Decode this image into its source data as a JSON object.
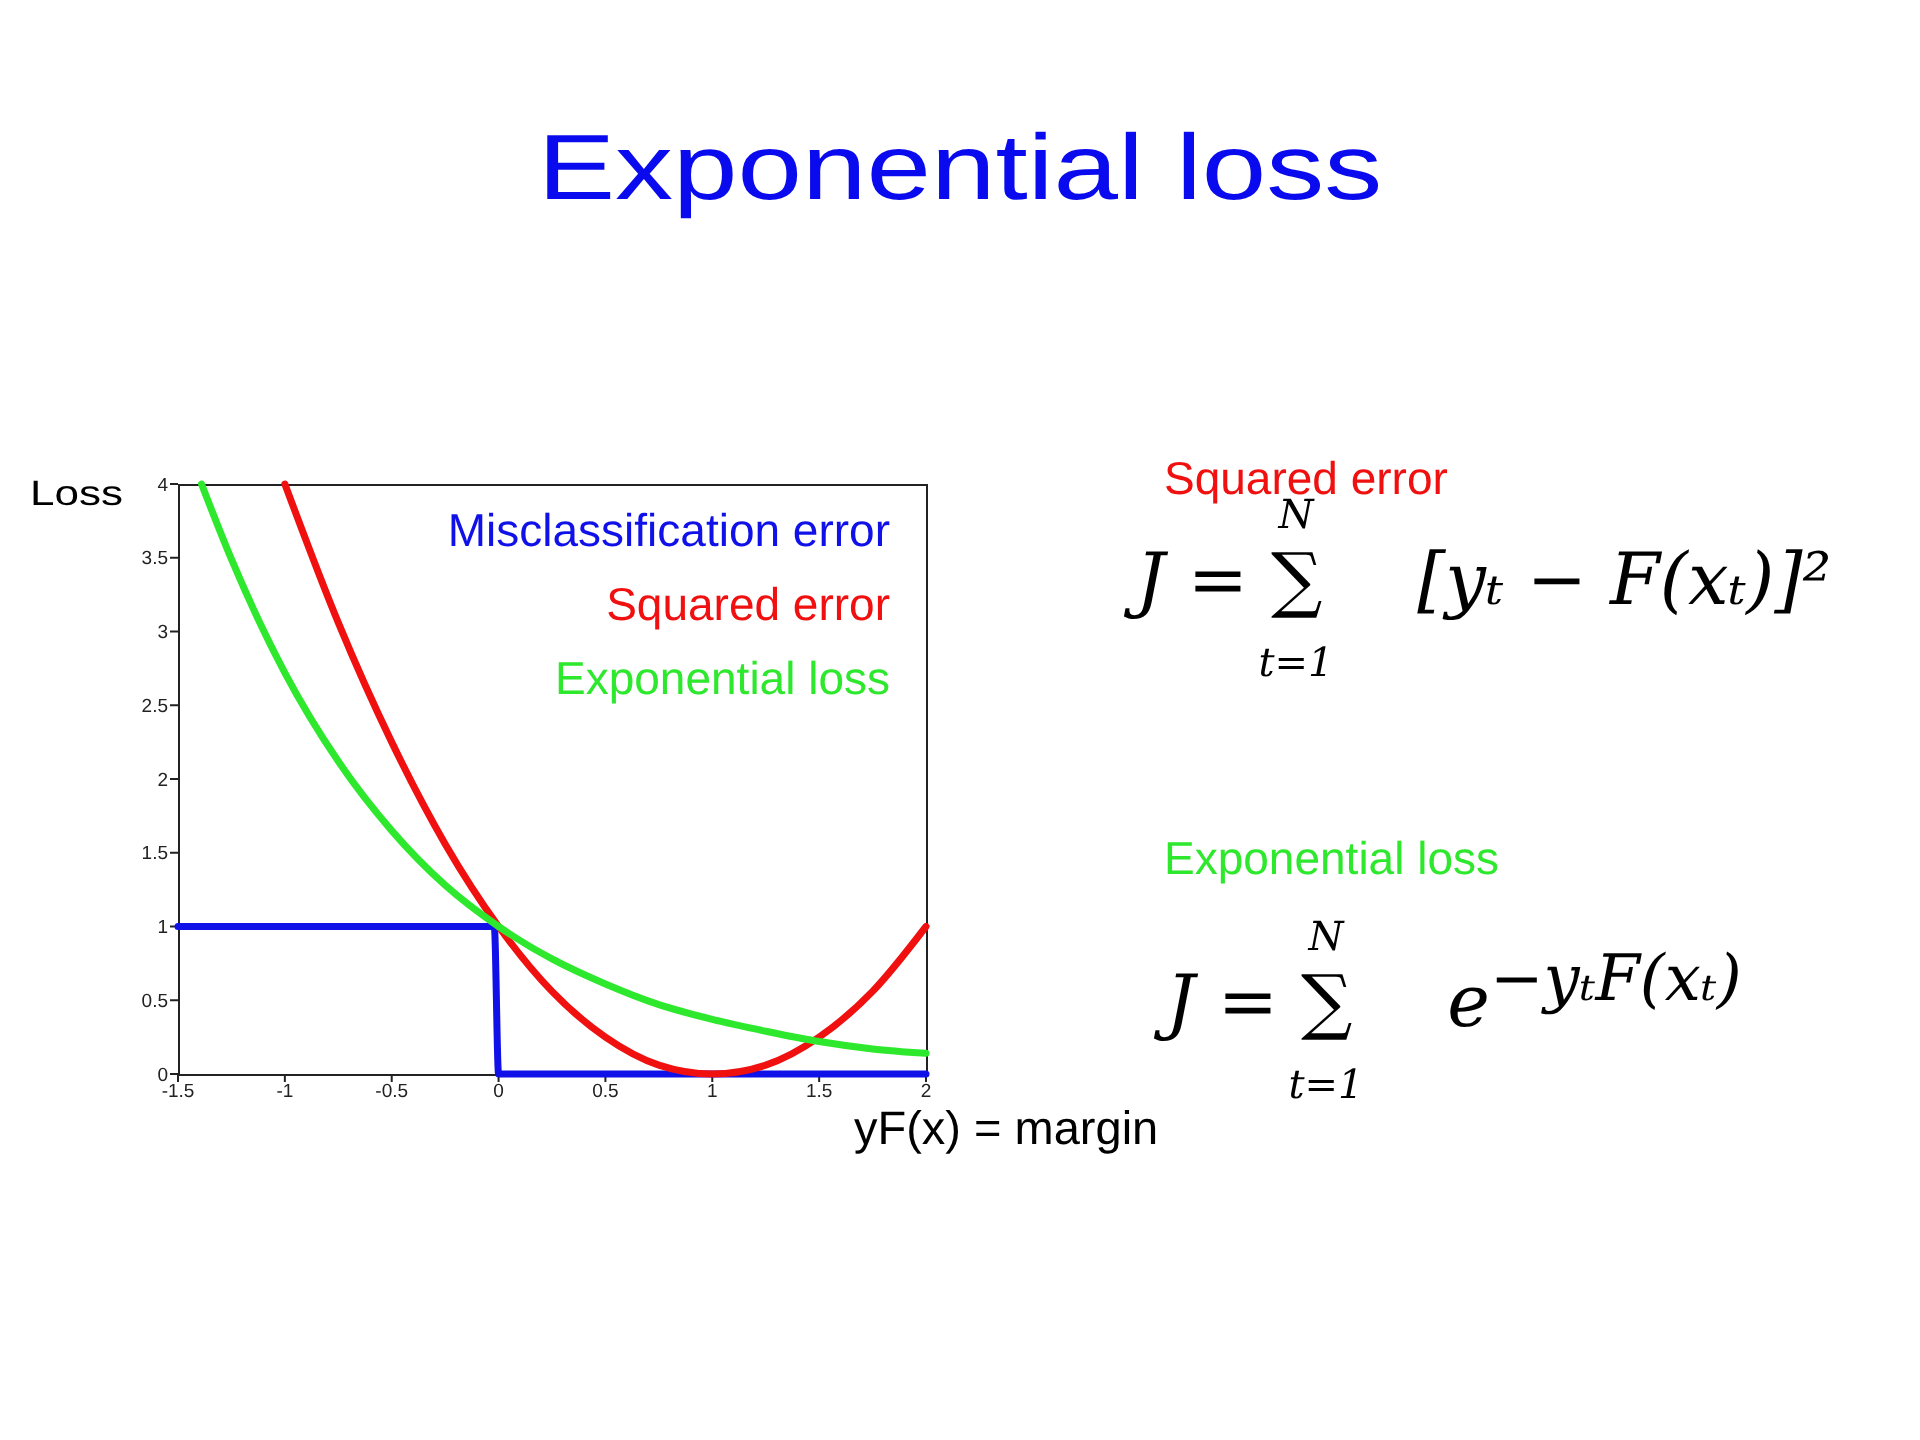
{
  "chart_data": {
    "type": "line",
    "title": "Exponential loss",
    "xlabel": "yF(x) = margin",
    "ylabel": "Loss",
    "series": [
      {
        "name": "Misclassification error",
        "color": "#1010e8",
        "x": [
          -1.5,
          -0.02,
          0,
          2
        ],
        "values": [
          1,
          1,
          0,
          0
        ]
      },
      {
        "name": "Squared error",
        "color": "#f01010",
        "x": [
          -1,
          -0.75,
          -0.5,
          -0.25,
          0,
          0.25,
          0.5,
          0.75,
          1,
          1.25,
          1.5,
          1.75,
          2
        ],
        "values": [
          4,
          3.06,
          2.25,
          1.56,
          1,
          0.56,
          0.25,
          0.06,
          0,
          0.06,
          0.25,
          0.56,
          1
        ]
      },
      {
        "name": "Exponential loss",
        "color": "#2ee82e",
        "x": [
          -1.39,
          -1.25,
          -1,
          -0.75,
          -0.5,
          -0.25,
          0,
          0.25,
          0.5,
          0.75,
          1,
          1.25,
          1.5,
          1.75,
          2
        ],
        "values": [
          4,
          3.49,
          2.72,
          2.12,
          1.65,
          1.28,
          1,
          0.78,
          0.61,
          0.47,
          0.37,
          0.29,
          0.22,
          0.17,
          0.14
        ]
      }
    ],
    "xlim": [
      -1.5,
      2
    ],
    "xticks": [
      -1.5,
      -1,
      -0.5,
      0,
      0.5,
      1,
      1.5,
      2
    ],
    "ylim": [
      0,
      4
    ],
    "yticks": [
      0,
      0.5,
      1,
      1.5,
      2,
      2.5,
      3,
      3.5,
      4
    ],
    "legend": "top right",
    "marker": "none",
    "line_style": "solid",
    "annotations": [
      "Squared error",
      "J = ∑$_{t=1}$$^{N}$ [yₜ − F(xₜ)]²",
      "Exponential loss",
      "J = ∑$_{t=1}$$^{N}$ e$^{−yₜF(xₜ)}$"
    ]
  }
}
